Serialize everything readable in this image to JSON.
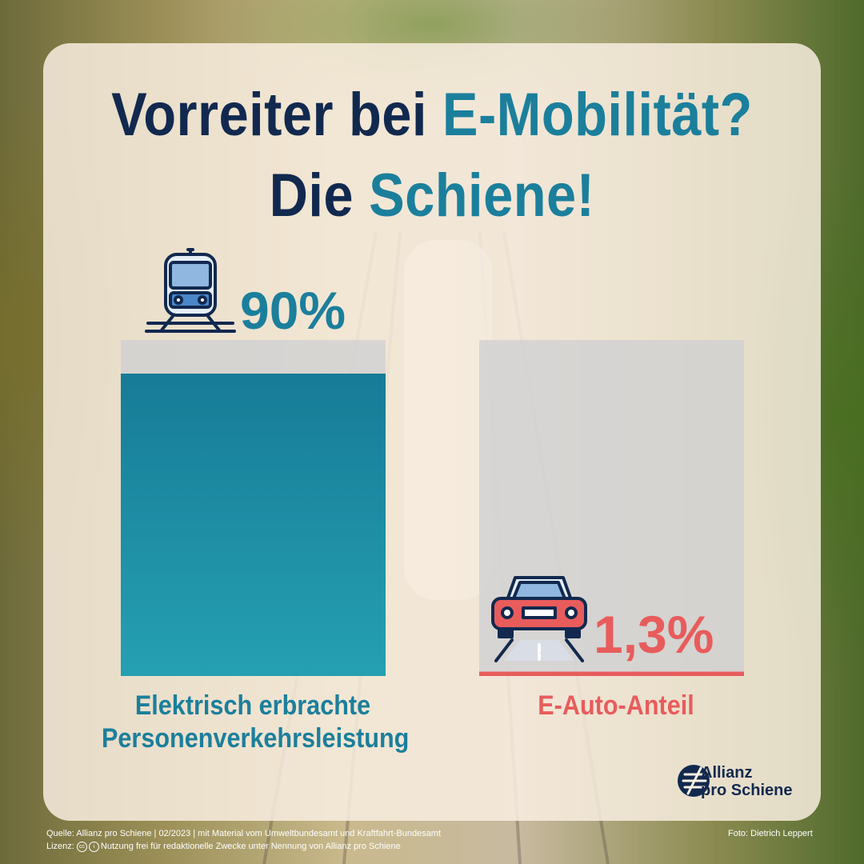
{
  "title": {
    "line1_part1": "Vorreiter bei ",
    "line1_part2": "E-Mobilität?",
    "line2_part1": "Die ",
    "line2_part2": "Schiene!"
  },
  "chart_data": {
    "type": "bar",
    "categories": [
      "Elektrisch erbrachte Personenverkehrsleistung",
      "E-Auto-Anteil"
    ],
    "values": [
      90,
      1.3
    ],
    "value_labels": [
      "90%",
      "1,3%"
    ],
    "label_lines": [
      [
        "Elektrisch erbrachte",
        "Personenverkehrsleistung"
      ],
      [
        "E-Auto-Anteil"
      ]
    ],
    "ylim": [
      0,
      100
    ],
    "colors": [
      "#1b7f9c",
      "#e85c5c"
    ],
    "icons": [
      "train-icon",
      "car-icon"
    ]
  },
  "logo": {
    "line1": "Allianz",
    "line2": "pro Schiene"
  },
  "footer": {
    "source": "Quelle: Allianz pro Schiene | 02/2023 | mit Material vom Umweltbundesamt und Kraftfahrt-Bundesamt",
    "license_prefix": "Lizenz:",
    "license_text": "Nutzung frei für redaktionelle Zwecke unter Nennung von Allianz pro Schiene",
    "photo": "Foto: Dietrich Leppert"
  }
}
